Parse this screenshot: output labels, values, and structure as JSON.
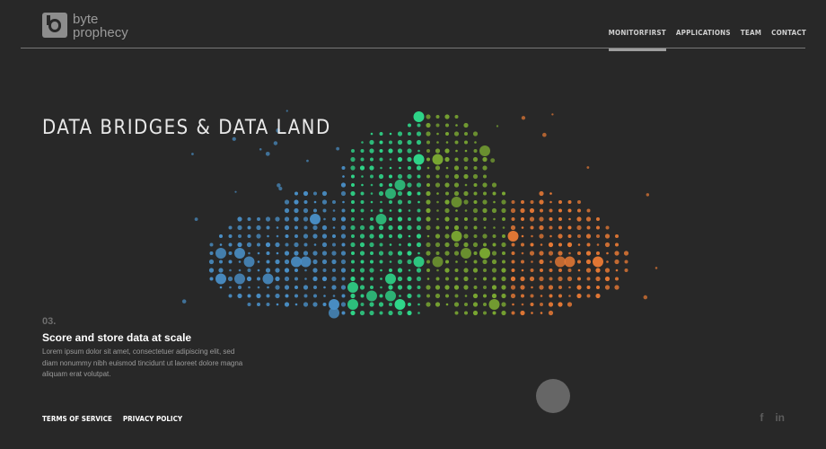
{
  "logo": {
    "line1": "byte",
    "line2": "prophecy"
  },
  "nav": {
    "items": [
      {
        "label": "MONITORFIRST",
        "active": true
      },
      {
        "label": "APPLICATIONS",
        "active": false
      },
      {
        "label": "TEAM",
        "active": false
      },
      {
        "label": "CONTACT",
        "active": false
      }
    ]
  },
  "hero": {
    "title": "DATA BRIDGES & DATA LAND"
  },
  "section": {
    "number": "03.",
    "title": "Score and store data at scale",
    "body": "Lorem ipsum dolor sit amet, consectetuer adipiscing elit, sed diam nonummy nibh euismod tincidunt ut laoreet dolore magna aliquam erat volutpat."
  },
  "footer": {
    "terms": "TERMS OF SERVICE",
    "privacy": "PRIVACY POLICY"
  },
  "social": {
    "facebook": "f",
    "linkedin": "in"
  },
  "colors": {
    "background": "#282828",
    "blue": "#4a90c8",
    "green": "#2fd88a",
    "olive": "#7aa832",
    "orange": "#e87a35",
    "accent_bar": "#9e9e9e"
  },
  "icons": [
    "logo-icon",
    "facebook-icon",
    "linkedin-icon"
  ]
}
